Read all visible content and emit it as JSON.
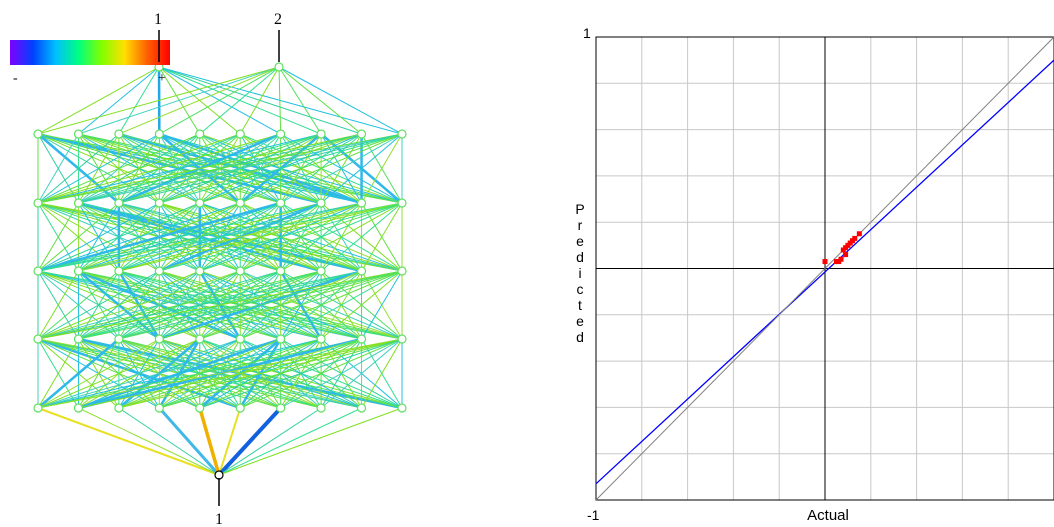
{
  "network_panel": {
    "output_labels": [
      "1",
      "2"
    ],
    "input_label": "1",
    "legend_min_label": "-",
    "legend_max_label": "+",
    "legend_colors": [
      "#7f00ff",
      "#0040ff",
      "#00c0ff",
      "#00ff80",
      "#80ff00",
      "#ffe000",
      "#ff6000",
      "#ff0000"
    ],
    "layers_hidden": 5,
    "nodes_per_hidden_layer": 10,
    "outputs": 2,
    "inputs": 1
  },
  "chart_data": {
    "type": "scatter",
    "title": "",
    "xlabel": "Actual",
    "ylabel": "Predicted",
    "xlim": [
      -1,
      1
    ],
    "ylim": [
      -1,
      1
    ],
    "x_tick_labels": [
      "-1"
    ],
    "y_tick_labels": [
      "1"
    ],
    "grid": true,
    "grid_divisions": 10,
    "series": [
      {
        "style": "points",
        "color": "#ff0000",
        "x": [
          0.0,
          0.05,
          0.07,
          0.08,
          0.09,
          0.1,
          0.11,
          0.12,
          0.13,
          0.15,
          0.06,
          0.09
        ],
        "y": [
          0.03,
          0.03,
          0.04,
          0.08,
          0.09,
          0.1,
          0.11,
          0.12,
          0.13,
          0.15,
          0.03,
          0.06
        ]
      },
      {
        "style": "line",
        "color": "#0000ff",
        "x": [
          -1.0,
          1.0
        ],
        "y": [
          -0.93,
          0.9
        ]
      },
      {
        "style": "line",
        "color": "#808080",
        "x": [
          -1.0,
          1.0
        ],
        "y": [
          -1.0,
          1.0
        ]
      }
    ]
  }
}
